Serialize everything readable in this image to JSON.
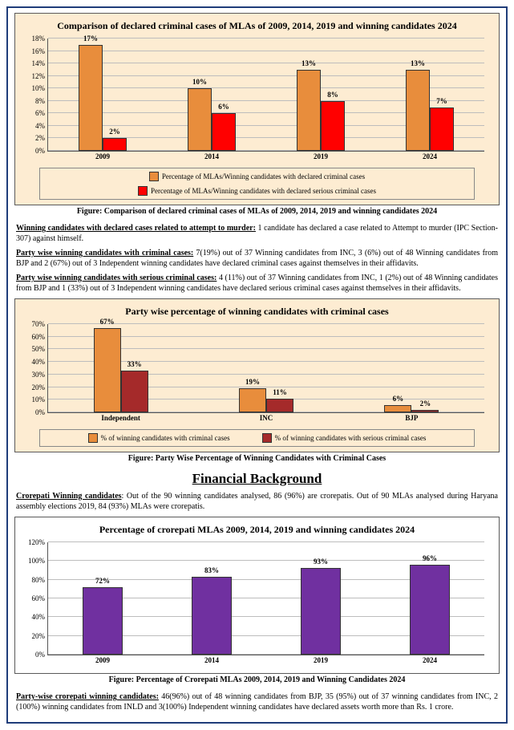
{
  "chart1": {
    "type": "bar",
    "title": "Comparison of declared criminal cases of MLAs of 2009, 2014, 2019 and winning candidates 2024",
    "categories": [
      "2009",
      "2014",
      "2019",
      "2024"
    ],
    "series1_values": [
      17,
      10,
      13,
      13
    ],
    "series2_values": [
      2,
      6,
      8,
      7
    ],
    "series1_color": "#e88d3c",
    "series2_color": "#ff0000",
    "ylim": [
      0,
      18
    ],
    "ytick_step": 2,
    "background_color": "#fdecd2",
    "legend": {
      "s1": "Percentage of MLAs/Winning candidates with declared criminal  cases",
      "s2": "Percentage of MLAs/Winning candidates with declared serious criminal cases"
    },
    "caption": "Figure: Comparison of declared criminal cases of MLAs of 2009, 2014, 2019 and winning candidates 2024"
  },
  "para1": {
    "lead": "Winning  candidates with declared cases related to attempt to murder:",
    "body": " 1 candidate has declared a case related to Attempt to murder (IPC Section-307) against himself."
  },
  "para2": {
    "lead": "Party wise winning  candidates with criminal cases:",
    "body": " 7(19%) out of 37 Winning candidates from INC, 3 (6%) out of 48 Winning candidates from BJP and 2 (67%)  out of 3 Independent winning candidates have declared criminal cases against themselves in their affidavits."
  },
  "para3": {
    "lead": "Party wise winning  candidates with serious criminal cases:",
    "body": " 4 (11%) out of 37 Winning candidates from INC, 1 (2%) out of 48 Winning candidates from BJP and 1 (33%)  out of 3 Independent winning candidates have declared serious criminal cases against themselves in their affidavits."
  },
  "chart2": {
    "type": "bar",
    "title": "Party wise percentage of winning candidates with criminal cases",
    "categories": [
      "Independent",
      "INC",
      "BJP"
    ],
    "series1_values": [
      67,
      19,
      6
    ],
    "series2_values": [
      33,
      11,
      2
    ],
    "series1_color": "#e88d3c",
    "series2_color": "#a52a2a",
    "ylim": [
      0,
      70
    ],
    "ytick_step": 10,
    "background_color": "#fdecd2",
    "legend": {
      "s1": "% of winning candidates with criminal cases",
      "s2": "% of winning candidates with serious criminal cases"
    },
    "caption": "Figure: Party Wise Percentage of Winning Candidates with Criminal Cases"
  },
  "section_head": "Financial Background",
  "para4": {
    "lead": "Crorepati Winning  candidates",
    "body": ": Out of the 90 winning candidates analysed, 86 (96%) are crorepatis. Out of 90 MLAs analysed during Haryana assembly elections 2019, 84 (93%) MLAs were crorepatis."
  },
  "chart3": {
    "type": "bar",
    "title": "Percentage of crorepati MLAs 2009, 2014, 2019 and winning candidates 2024",
    "categories": [
      "2009",
      "2014",
      "2019",
      "2024"
    ],
    "series1_values": [
      72,
      83,
      93,
      96
    ],
    "series1_color": "#7030a0",
    "ylim": [
      0,
      120
    ],
    "ytick_step": 20,
    "background_color": "#ffffff",
    "caption": "Figure: Percentage of Crorepati MLAs 2009, 2014, 2019 and Winning Candidates 2024"
  },
  "para5": {
    "lead": "Party-wise crorepati winning candidates:",
    "body": " 46(96%) out of 48 winning candidates from BJP, 35 (95%) out of 37 winning candidates from INC, 2 (100%) winning candidates from INLD and 3(100%) Independent winning candidates have declared assets worth more than Rs. 1 crore."
  }
}
